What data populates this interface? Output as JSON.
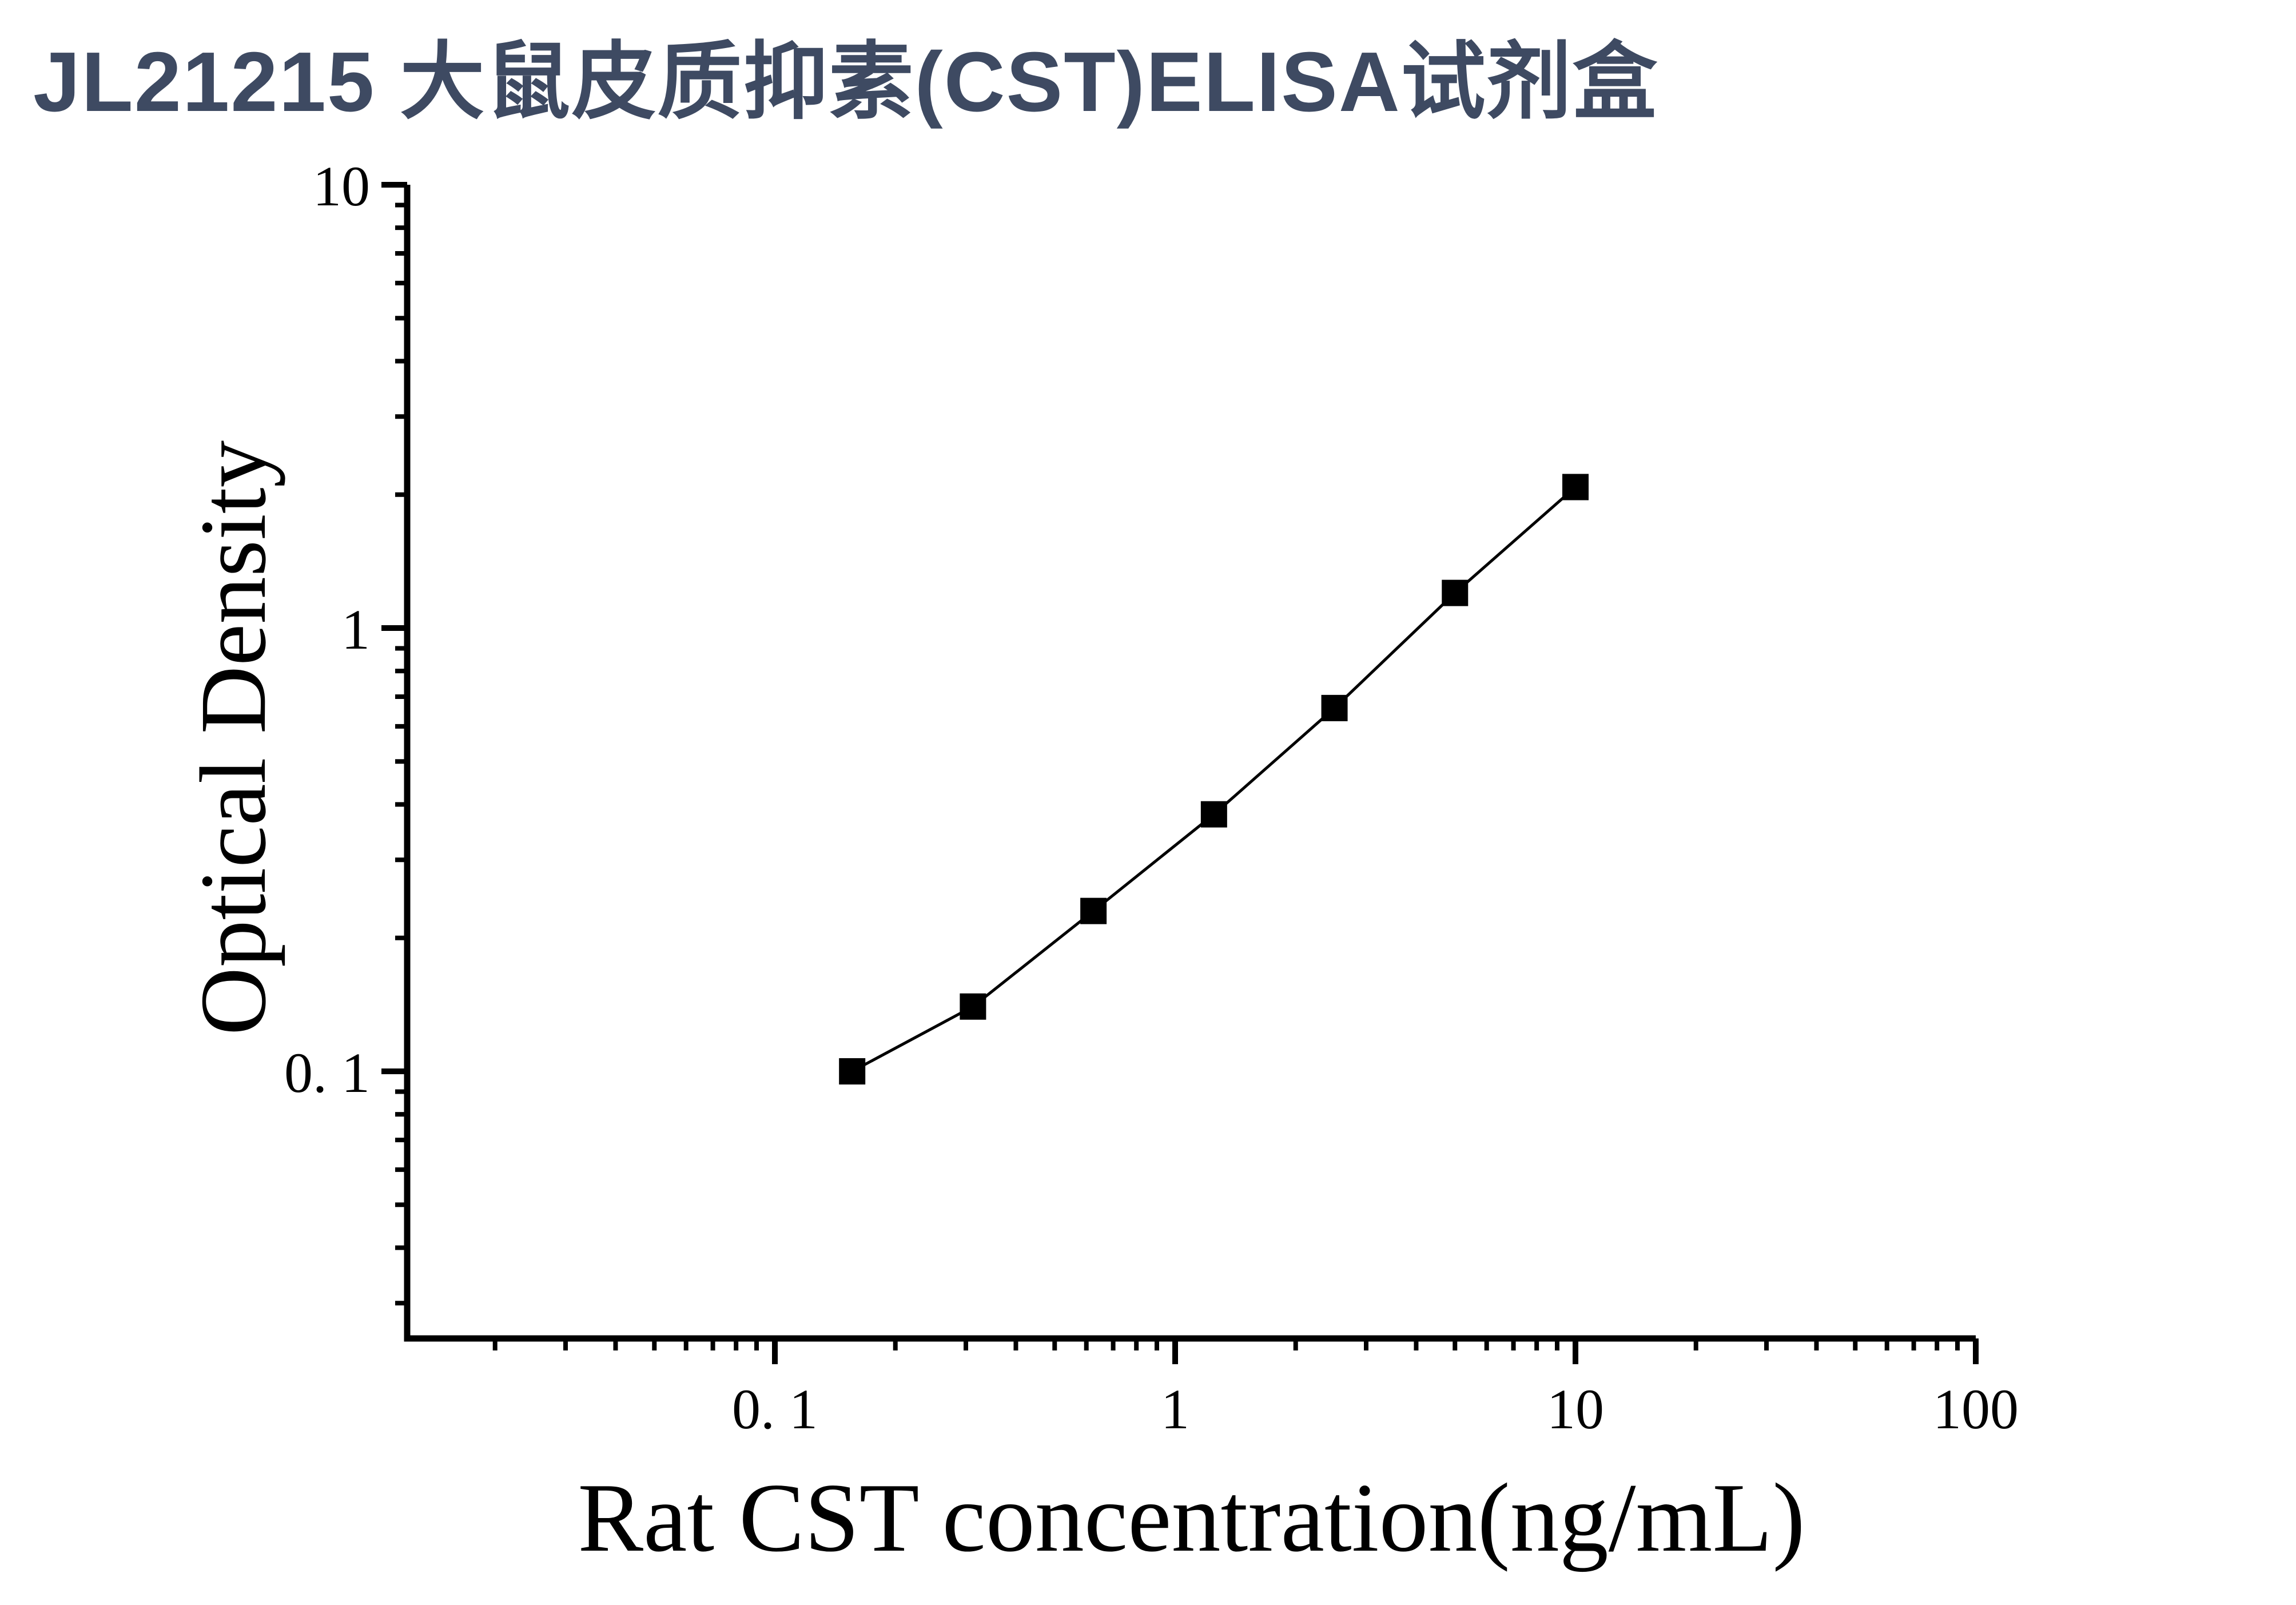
{
  "page_title": "JL21215 大鼠皮质抑素(CST)ELISA试剂盒",
  "colors": {
    "title": "#3e4a62",
    "axis": "#000000",
    "marker": "#000000",
    "line": "#000000",
    "background": "#ffffff"
  },
  "chart_data": {
    "type": "line",
    "title": "JL21215 大鼠皮质抑素(CST)ELISA试剂盒",
    "xlabel": "Rat CST concentration(ng/mL)",
    "ylabel": "Optical Density",
    "x_scale": "log",
    "y_scale": "log",
    "xlim": [
      0.012,
      100
    ],
    "ylim": [
      0.025,
      10
    ],
    "x_ticks": [
      0.1,
      1,
      10,
      100
    ],
    "x_tick_labels": [
      "0. 1",
      "1",
      "10",
      "100"
    ],
    "x_minor_ticks": [
      0.02,
      0.03,
      0.04,
      0.05,
      0.06,
      0.07,
      0.08,
      0.09,
      0.2,
      0.3,
      0.4,
      0.5,
      0.6,
      0.7,
      0.8,
      0.9,
      2,
      3,
      4,
      5,
      6,
      7,
      8,
      9,
      20,
      30,
      40,
      50,
      60,
      70,
      80,
      90
    ],
    "y_ticks": [
      10,
      1,
      0.1
    ],
    "y_tick_labels": [
      "10",
      "1",
      "0. 1"
    ],
    "y_minor_ticks": [
      0.03,
      0.04,
      0.05,
      0.06,
      0.07,
      0.08,
      0.09,
      0.2,
      0.3,
      0.4,
      0.5,
      0.6,
      0.7,
      0.8,
      0.9,
      2,
      3,
      4,
      5,
      6,
      7,
      8,
      9
    ],
    "grid": false,
    "legend": null,
    "marker": "square",
    "series": [
      {
        "name": "standard_curve",
        "x": [
          0.156,
          0.3125,
          0.625,
          1.25,
          2.5,
          5,
          10
        ],
        "y": [
          0.1,
          0.14,
          0.23,
          0.38,
          0.66,
          1.2,
          2.08
        ]
      }
    ]
  }
}
